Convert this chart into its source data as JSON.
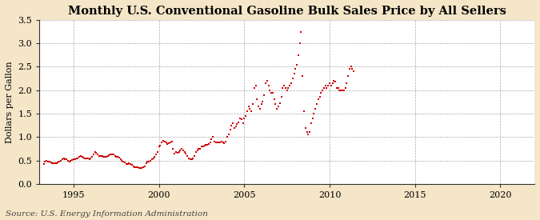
{
  "title": "Monthly U.S. Conventional Gasoline Bulk Sales Price by All Sellers",
  "ylabel": "Dollars per Gallon",
  "source": "Source: U.S. Energy Information Administration",
  "xlim": [
    1993.0,
    2022.0
  ],
  "ylim": [
    0.0,
    3.5
  ],
  "yticks": [
    0.0,
    0.5,
    1.0,
    1.5,
    2.0,
    2.5,
    3.0,
    3.5
  ],
  "xticks": [
    1995,
    2000,
    2005,
    2010,
    2015,
    2020
  ],
  "marker_color": "#cc0000",
  "marker": "s",
  "marker_size": 4,
  "outer_bg": "#f5e6c8",
  "plot_bg_color": "#ffffff",
  "grid_color": "#aaaaaa",
  "title_fontsize": 10.5,
  "label_fontsize": 8,
  "tick_fontsize": 8,
  "source_fontsize": 7.5,
  "data": [
    [
      1993.25,
      0.43
    ],
    [
      1993.33,
      0.47
    ],
    [
      1993.42,
      0.5
    ],
    [
      1993.5,
      0.48
    ],
    [
      1993.58,
      0.47
    ],
    [
      1993.67,
      0.46
    ],
    [
      1993.75,
      0.44
    ],
    [
      1993.83,
      0.44
    ],
    [
      1993.92,
      0.44
    ],
    [
      1994.0,
      0.44
    ],
    [
      1994.08,
      0.45
    ],
    [
      1994.17,
      0.47
    ],
    [
      1994.25,
      0.5
    ],
    [
      1994.33,
      0.52
    ],
    [
      1994.42,
      0.54
    ],
    [
      1994.5,
      0.53
    ],
    [
      1994.58,
      0.52
    ],
    [
      1994.67,
      0.5
    ],
    [
      1994.75,
      0.48
    ],
    [
      1994.83,
      0.5
    ],
    [
      1994.92,
      0.51
    ],
    [
      1995.0,
      0.52
    ],
    [
      1995.08,
      0.52
    ],
    [
      1995.17,
      0.54
    ],
    [
      1995.25,
      0.55
    ],
    [
      1995.33,
      0.57
    ],
    [
      1995.42,
      0.6
    ],
    [
      1995.5,
      0.57
    ],
    [
      1995.58,
      0.56
    ],
    [
      1995.67,
      0.55
    ],
    [
      1995.75,
      0.54
    ],
    [
      1995.83,
      0.54
    ],
    [
      1995.92,
      0.53
    ],
    [
      1996.0,
      0.55
    ],
    [
      1996.08,
      0.58
    ],
    [
      1996.17,
      0.62
    ],
    [
      1996.25,
      0.68
    ],
    [
      1996.33,
      0.66
    ],
    [
      1996.42,
      0.63
    ],
    [
      1996.5,
      0.6
    ],
    [
      1996.58,
      0.59
    ],
    [
      1996.67,
      0.6
    ],
    [
      1996.75,
      0.58
    ],
    [
      1996.83,
      0.58
    ],
    [
      1996.92,
      0.58
    ],
    [
      1997.0,
      0.6
    ],
    [
      1997.08,
      0.61
    ],
    [
      1997.17,
      0.62
    ],
    [
      1997.25,
      0.62
    ],
    [
      1997.33,
      0.62
    ],
    [
      1997.42,
      0.6
    ],
    [
      1997.5,
      0.58
    ],
    [
      1997.58,
      0.57
    ],
    [
      1997.67,
      0.56
    ],
    [
      1997.75,
      0.52
    ],
    [
      1997.83,
      0.5
    ],
    [
      1997.92,
      0.47
    ],
    [
      1998.0,
      0.45
    ],
    [
      1998.08,
      0.43
    ],
    [
      1998.17,
      0.43
    ],
    [
      1998.25,
      0.44
    ],
    [
      1998.33,
      0.42
    ],
    [
      1998.42,
      0.4
    ],
    [
      1998.5,
      0.38
    ],
    [
      1998.58,
      0.36
    ],
    [
      1998.67,
      0.36
    ],
    [
      1998.75,
      0.35
    ],
    [
      1998.83,
      0.34
    ],
    [
      1998.92,
      0.33
    ],
    [
      1999.0,
      0.33
    ],
    [
      1999.08,
      0.35
    ],
    [
      1999.17,
      0.38
    ],
    [
      1999.25,
      0.44
    ],
    [
      1999.33,
      0.47
    ],
    [
      1999.42,
      0.48
    ],
    [
      1999.5,
      0.5
    ],
    [
      1999.58,
      0.52
    ],
    [
      1999.67,
      0.54
    ],
    [
      1999.75,
      0.57
    ],
    [
      1999.83,
      0.62
    ],
    [
      1999.92,
      0.68
    ],
    [
      2000.0,
      0.8
    ],
    [
      2000.08,
      0.82
    ],
    [
      2000.17,
      0.88
    ],
    [
      2000.25,
      0.92
    ],
    [
      2000.33,
      0.9
    ],
    [
      2000.42,
      0.88
    ],
    [
      2000.5,
      0.85
    ],
    [
      2000.58,
      0.87
    ],
    [
      2000.67,
      0.89
    ],
    [
      2000.75,
      0.9
    ],
    [
      2000.83,
      0.75
    ],
    [
      2000.92,
      0.65
    ],
    [
      2001.0,
      0.68
    ],
    [
      2001.08,
      0.67
    ],
    [
      2001.17,
      0.68
    ],
    [
      2001.25,
      0.72
    ],
    [
      2001.33,
      0.75
    ],
    [
      2001.42,
      0.72
    ],
    [
      2001.5,
      0.68
    ],
    [
      2001.58,
      0.65
    ],
    [
      2001.67,
      0.6
    ],
    [
      2001.75,
      0.55
    ],
    [
      2001.83,
      0.52
    ],
    [
      2001.92,
      0.52
    ],
    [
      2002.0,
      0.55
    ],
    [
      2002.08,
      0.6
    ],
    [
      2002.17,
      0.68
    ],
    [
      2002.25,
      0.72
    ],
    [
      2002.33,
      0.75
    ],
    [
      2002.42,
      0.75
    ],
    [
      2002.5,
      0.8
    ],
    [
      2002.58,
      0.8
    ],
    [
      2002.67,
      0.82
    ],
    [
      2002.75,
      0.83
    ],
    [
      2002.83,
      0.83
    ],
    [
      2002.92,
      0.85
    ],
    [
      2003.0,
      0.88
    ],
    [
      2003.08,
      0.95
    ],
    [
      2003.17,
      1.0
    ],
    [
      2003.25,
      0.9
    ],
    [
      2003.33,
      0.88
    ],
    [
      2003.42,
      0.88
    ],
    [
      2003.5,
      0.88
    ],
    [
      2003.58,
      0.89
    ],
    [
      2003.67,
      0.9
    ],
    [
      2003.75,
      0.88
    ],
    [
      2003.83,
      0.87
    ],
    [
      2003.92,
      0.9
    ],
    [
      2004.0,
      1.0
    ],
    [
      2004.08,
      1.05
    ],
    [
      2004.17,
      1.15
    ],
    [
      2004.25,
      1.25
    ],
    [
      2004.33,
      1.3
    ],
    [
      2004.42,
      1.2
    ],
    [
      2004.5,
      1.22
    ],
    [
      2004.58,
      1.28
    ],
    [
      2004.67,
      1.32
    ],
    [
      2004.75,
      1.4
    ],
    [
      2004.83,
      1.38
    ],
    [
      2004.92,
      1.3
    ],
    [
      2005.0,
      1.4
    ],
    [
      2005.08,
      1.45
    ],
    [
      2005.17,
      1.55
    ],
    [
      2005.25,
      1.65
    ],
    [
      2005.33,
      1.6
    ],
    [
      2005.42,
      1.55
    ],
    [
      2005.5,
      1.7
    ],
    [
      2005.58,
      2.05
    ],
    [
      2005.67,
      2.1
    ],
    [
      2005.75,
      1.8
    ],
    [
      2005.83,
      1.65
    ],
    [
      2005.92,
      1.6
    ],
    [
      2006.0,
      1.7
    ],
    [
      2006.08,
      1.75
    ],
    [
      2006.17,
      1.9
    ],
    [
      2006.25,
      2.15
    ],
    [
      2006.33,
      2.2
    ],
    [
      2006.42,
      2.1
    ],
    [
      2006.5,
      2.0
    ],
    [
      2006.58,
      1.95
    ],
    [
      2006.67,
      1.95
    ],
    [
      2006.75,
      1.8
    ],
    [
      2006.83,
      1.7
    ],
    [
      2006.92,
      1.6
    ],
    [
      2007.0,
      1.65
    ],
    [
      2007.08,
      1.72
    ],
    [
      2007.17,
      1.85
    ],
    [
      2007.25,
      2.05
    ],
    [
      2007.33,
      2.1
    ],
    [
      2007.42,
      2.05
    ],
    [
      2007.5,
      2.0
    ],
    [
      2007.58,
      2.05
    ],
    [
      2007.67,
      2.1
    ],
    [
      2007.75,
      2.15
    ],
    [
      2007.83,
      2.25
    ],
    [
      2007.92,
      2.35
    ],
    [
      2008.0,
      2.45
    ],
    [
      2008.08,
      2.55
    ],
    [
      2008.17,
      2.75
    ],
    [
      2008.25,
      3.0
    ],
    [
      2008.33,
      3.25
    ],
    [
      2008.42,
      2.3
    ],
    [
      2008.5,
      1.55
    ],
    [
      2008.58,
      1.2
    ],
    [
      2008.67,
      1.1
    ],
    [
      2008.75,
      1.05
    ],
    [
      2008.83,
      1.1
    ],
    [
      2008.92,
      1.3
    ],
    [
      2009.0,
      1.4
    ],
    [
      2009.08,
      1.5
    ],
    [
      2009.17,
      1.6
    ],
    [
      2009.25,
      1.7
    ],
    [
      2009.33,
      1.8
    ],
    [
      2009.42,
      1.85
    ],
    [
      2009.5,
      1.95
    ],
    [
      2009.58,
      2.0
    ],
    [
      2009.67,
      2.05
    ],
    [
      2009.75,
      2.1
    ],
    [
      2009.83,
      2.05
    ],
    [
      2009.92,
      2.1
    ],
    [
      2010.0,
      2.15
    ],
    [
      2010.08,
      2.1
    ],
    [
      2010.17,
      2.15
    ],
    [
      2010.25,
      2.2
    ],
    [
      2010.33,
      2.18
    ],
    [
      2010.42,
      2.05
    ],
    [
      2010.5,
      2.05
    ],
    [
      2010.58,
      2.0
    ],
    [
      2010.67,
      2.0
    ],
    [
      2010.75,
      2.0
    ],
    [
      2010.83,
      2.0
    ],
    [
      2010.92,
      2.05
    ],
    [
      2011.0,
      2.15
    ],
    [
      2011.08,
      2.3
    ],
    [
      2011.17,
      2.45
    ],
    [
      2011.25,
      2.5
    ],
    [
      2011.33,
      2.45
    ],
    [
      2011.42,
      2.4
    ]
  ]
}
